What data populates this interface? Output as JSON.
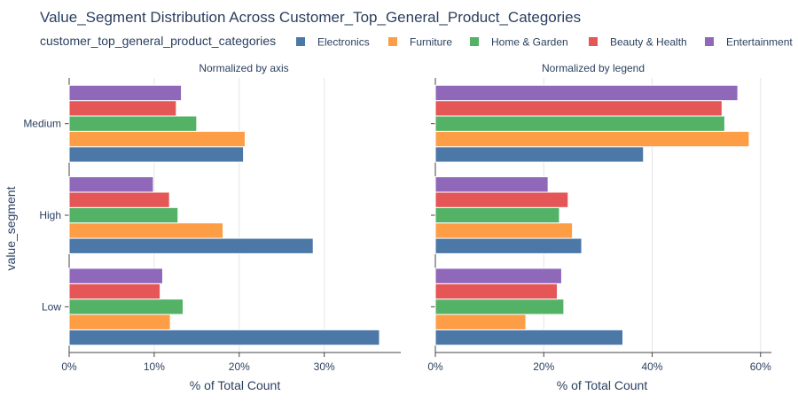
{
  "chart_data": {
    "type": "bar",
    "orientation": "horizontal",
    "title": "Value_Segment Distribution Across Customer_Top_General_Product_Categories",
    "legend": {
      "title": "customer_top_general_product_categories",
      "placement": "top"
    },
    "categories": [
      "Low",
      "High",
      "Medium"
    ],
    "ylabel": "value_segment",
    "series_colors": {
      "Electronics": "#4c78a8",
      "Furniture": "#fd9e47",
      "Home & Garden": "#54b266",
      "Beauty & Health": "#e45756",
      "Entertainment": "#8f68b9"
    },
    "panels": [
      {
        "subtitle": "Normalized by axis",
        "xlabel": "% of Total Count",
        "xlim": [
          0,
          39
        ],
        "xticks": [
          0,
          10,
          20,
          30
        ],
        "tick_suffix": "%",
        "series": [
          {
            "name": "Electronics",
            "values": [
              36.5,
              28.7,
              20.5
            ]
          },
          {
            "name": "Furniture",
            "values": [
              11.9,
              18.1,
              20.7
            ]
          },
          {
            "name": "Home & Garden",
            "values": [
              13.4,
              12.8,
              15.0
            ]
          },
          {
            "name": "Beauty & Health",
            "values": [
              10.7,
              11.8,
              12.6
            ]
          },
          {
            "name": "Entertainment",
            "values": [
              11.0,
              9.9,
              13.2
            ]
          }
        ]
      },
      {
        "subtitle": "Normalized by legend",
        "xlabel": "% of Total Count",
        "xlim": [
          0,
          62
        ],
        "xticks": [
          0,
          20,
          40,
          60
        ],
        "tick_suffix": "%",
        "series": [
          {
            "name": "Electronics",
            "values": [
              34.6,
              27.0,
              38.4
            ]
          },
          {
            "name": "Furniture",
            "values": [
              16.7,
              25.3,
              57.9
            ]
          },
          {
            "name": "Home & Garden",
            "values": [
              23.7,
              22.9,
              53.4
            ]
          },
          {
            "name": "Beauty & Health",
            "values": [
              22.5,
              24.5,
              52.9
            ]
          },
          {
            "name": "Entertainment",
            "values": [
              23.3,
              20.8,
              55.8
            ]
          }
        ]
      }
    ]
  }
}
